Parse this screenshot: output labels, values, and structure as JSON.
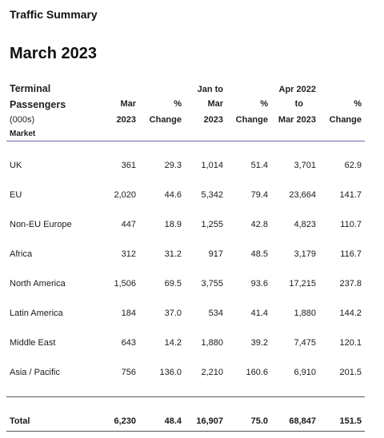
{
  "page": {
    "heading": "Traffic Summary",
    "month": "March 2023"
  },
  "table": {
    "header": {
      "terminal": "Terminal",
      "passengers": "Passengers",
      "units": "(000s)",
      "market": "Market",
      "col1": [
        "Mar",
        "2023"
      ],
      "col2": [
        "%",
        "Change"
      ],
      "col3": [
        "Jan to",
        "Mar",
        "2023"
      ],
      "col4": [
        "%",
        "Change"
      ],
      "col5": [
        "Apr 2022",
        "to",
        "Mar 2023"
      ],
      "col6": [
        "%",
        "Change"
      ]
    },
    "rows": [
      {
        "market": "UK",
        "v1": "361",
        "v2": "29.3",
        "v3": "1,014",
        "v4": "51.4",
        "v5": "3,701",
        "v6": "62.9"
      },
      {
        "market": "EU",
        "v1": "2,020",
        "v2": "44.6",
        "v3": "5,342",
        "v4": "79.4",
        "v5": "23,664",
        "v6": "141.7"
      },
      {
        "market": "Non-EU Europe",
        "v1": "447",
        "v2": "18.9",
        "v3": "1,255",
        "v4": "42.8",
        "v5": "4,823",
        "v6": "110.7"
      },
      {
        "market": "Africa",
        "v1": "312",
        "v2": "31.2",
        "v3": "917",
        "v4": "48.5",
        "v5": "3,179",
        "v6": "116.7"
      },
      {
        "market": "North America",
        "v1": "1,506",
        "v2": "69.5",
        "v3": "3,755",
        "v4": "93.6",
        "v5": "17,215",
        "v6": "237.8"
      },
      {
        "market": "Latin America",
        "v1": "184",
        "v2": "37.0",
        "v3": "534",
        "v4": "41.4",
        "v5": "1,880",
        "v6": "144.2"
      },
      {
        "market": "Middle East",
        "v1": "643",
        "v2": "14.2",
        "v3": "1,880",
        "v4": "39.2",
        "v5": "7,475",
        "v6": "120.1"
      },
      {
        "market": "Asia / Pacific",
        "v1": "756",
        "v2": "136.0",
        "v3": "2,210",
        "v4": "160.6",
        "v5": "6,910",
        "v6": "201.5"
      }
    ],
    "total": {
      "market": "Total",
      "v1": "6,230",
      "v2": "48.4",
      "v3": "16,907",
      "v4": "75.0",
      "v5": "68,847",
      "v6": "151.5"
    }
  },
  "colors": {
    "header_rule": "#7b5fa8",
    "total_rule": "#555555"
  }
}
